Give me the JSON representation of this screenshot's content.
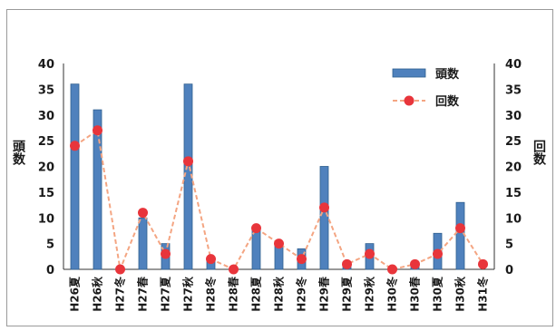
{
  "chart_data": {
    "type": "bar",
    "categories": [
      "H26夏",
      "H26秋",
      "H27冬",
      "H27春",
      "H27夏",
      "H27秋",
      "H28冬",
      "H28春",
      "H28夏",
      "H28秋",
      "H29冬",
      "H29春",
      "H29夏",
      "H29秋",
      "H30冬",
      "H30春",
      "H30夏",
      "H30秋",
      "H31冬"
    ],
    "series": [
      {
        "name": "頭数",
        "type": "bar",
        "axis": "left",
        "color": "#4f81bd",
        "values": [
          36,
          31,
          0,
          10,
          5,
          36,
          2,
          0,
          8,
          5,
          4,
          20,
          1,
          5,
          0,
          1,
          7,
          13,
          0
        ]
      },
      {
        "name": "回数",
        "type": "line",
        "axis": "right",
        "color": "#f4a582",
        "marker_color": "#e8353b",
        "values": [
          24,
          27,
          0,
          11,
          3,
          21,
          2,
          0,
          8,
          5,
          2,
          12,
          1,
          3,
          0,
          1,
          3,
          8,
          1
        ]
      }
    ],
    "ylabel": "頭数",
    "y2label": "回数",
    "ylim": [
      0,
      40
    ],
    "y2lim": [
      0,
      40
    ],
    "yticks": [
      0,
      5,
      10,
      15,
      20,
      25,
      30,
      35,
      40
    ],
    "grid": false,
    "legend": "top-right"
  }
}
